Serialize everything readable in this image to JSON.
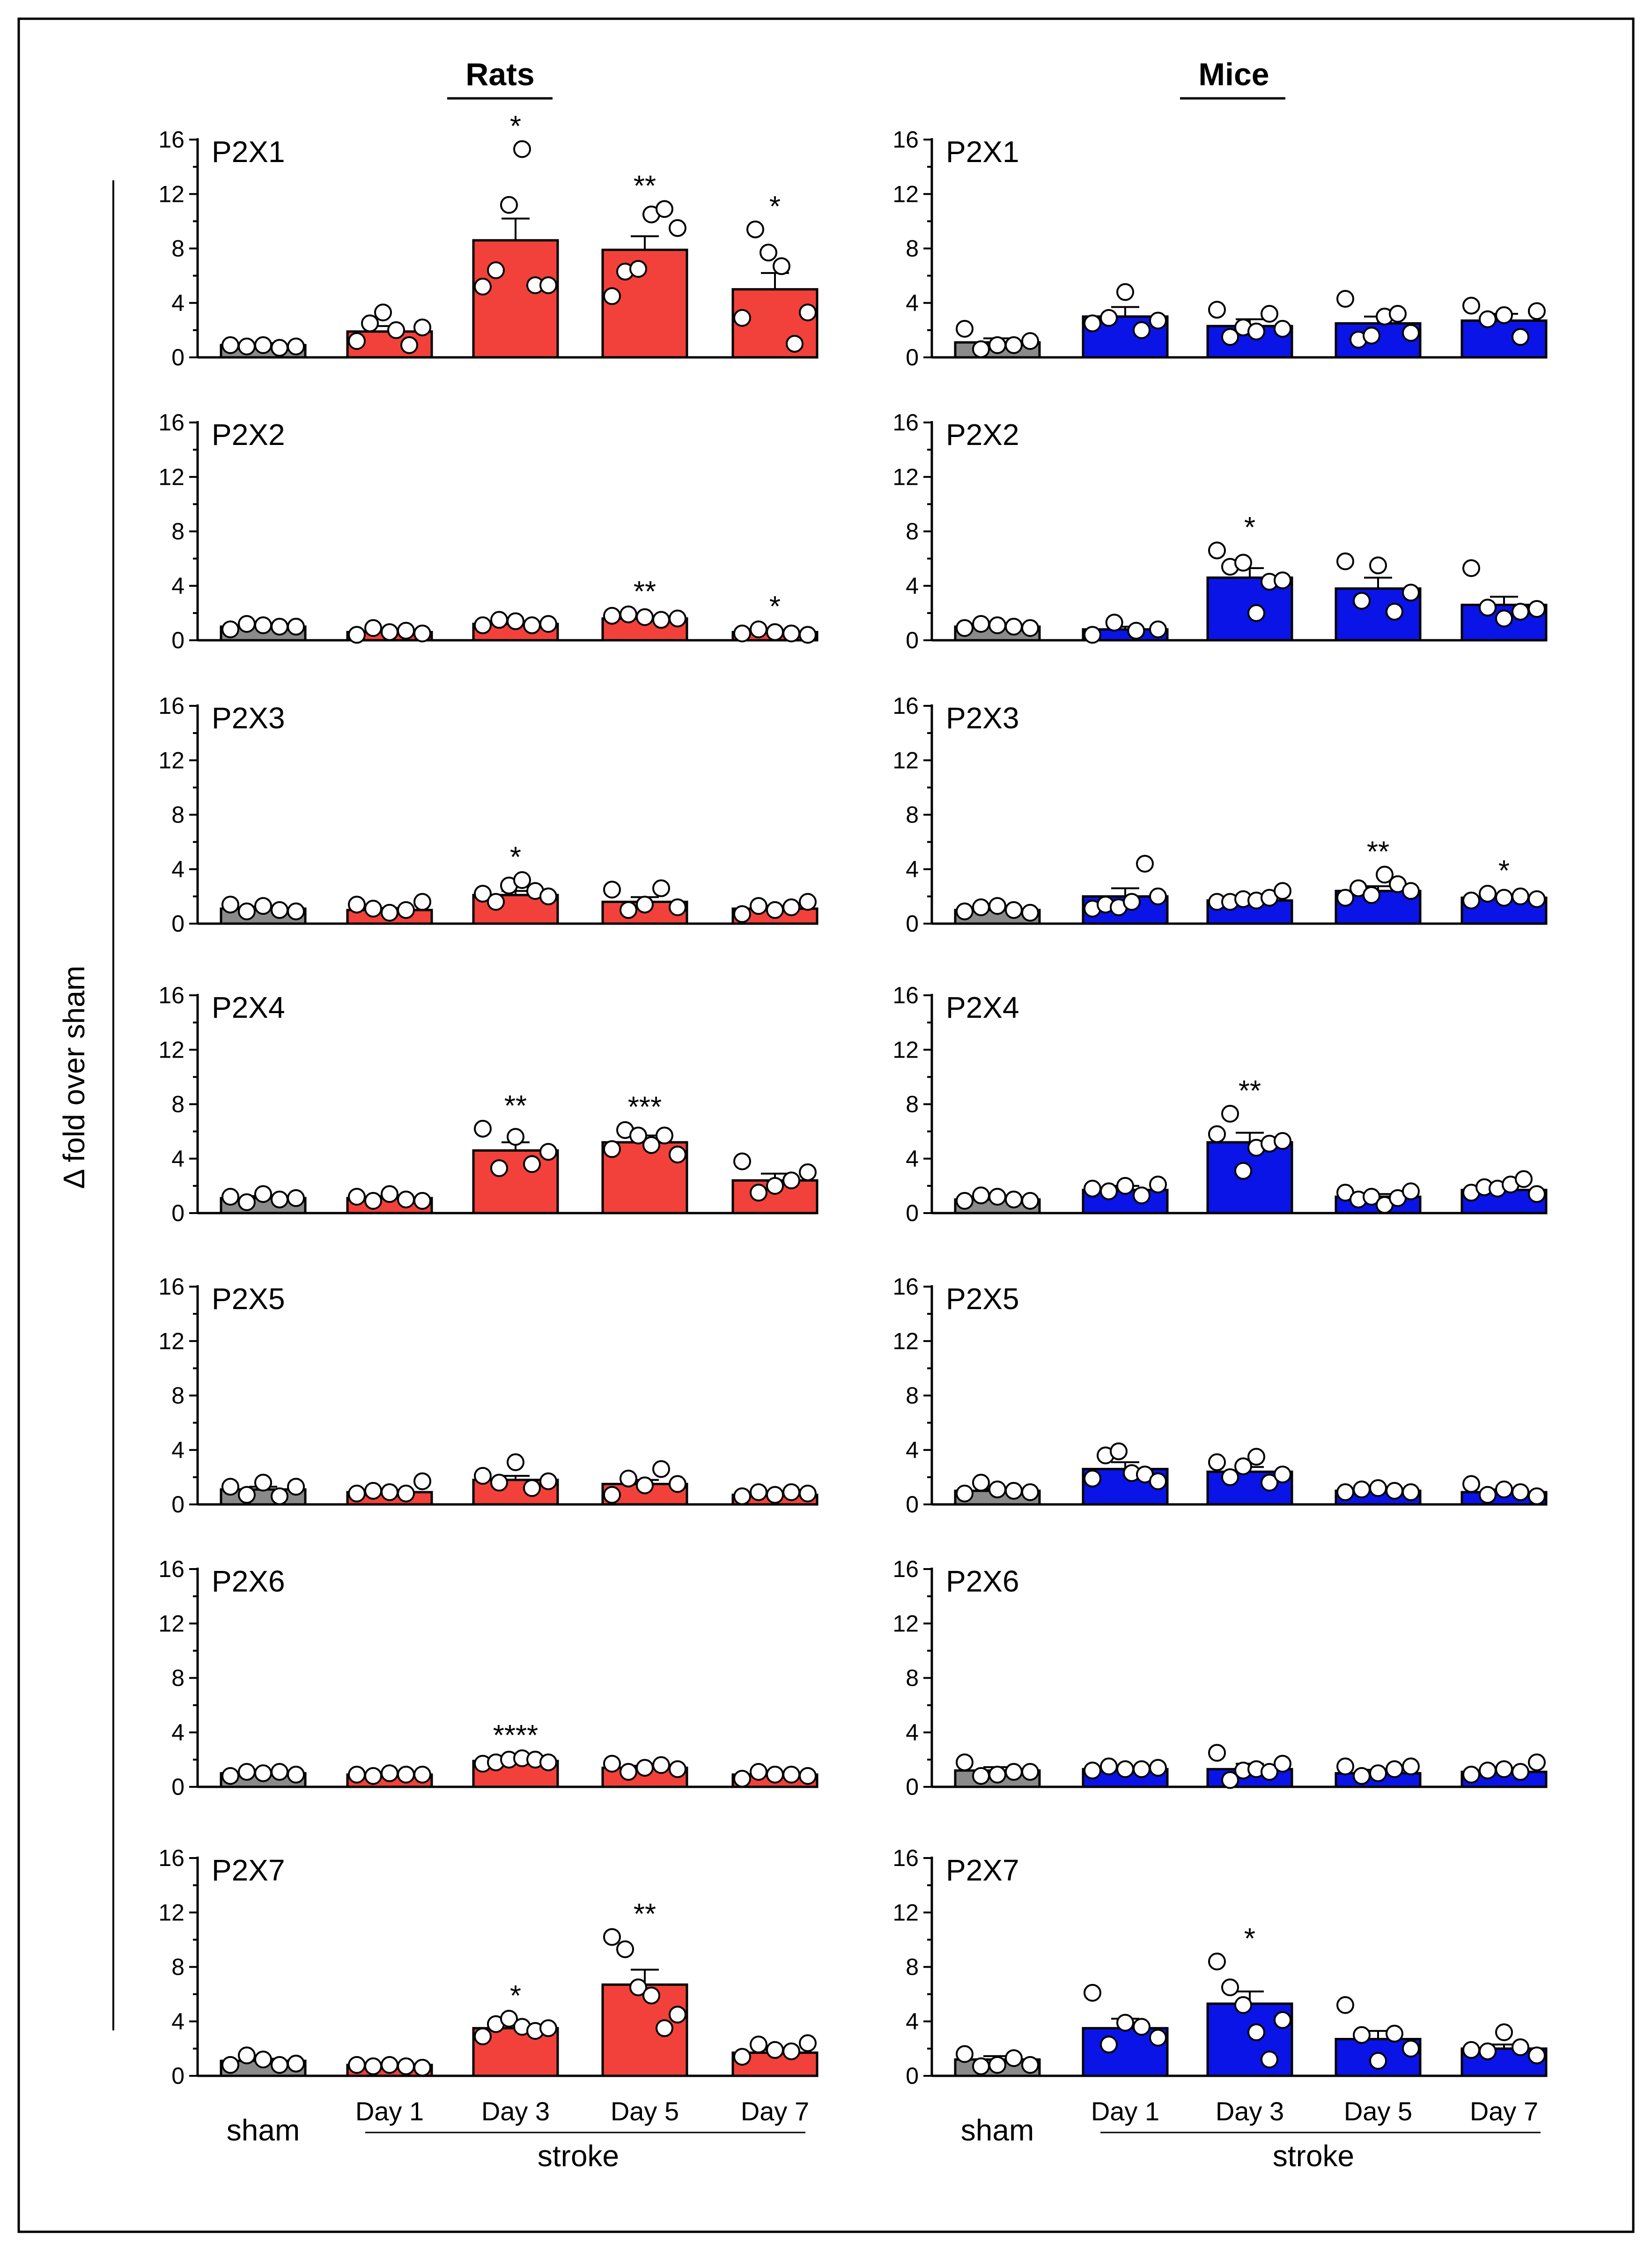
{
  "figure": {
    "y_axis_title": "Δ fold over sham",
    "columns": [
      {
        "title": "Rats",
        "color": "#f2413a"
      },
      {
        "title": "Mice",
        "color": "#0a14e6"
      }
    ],
    "sham_color": "#8a8a8a",
    "x_labels": {
      "sham": "sham",
      "days": [
        "Day 1",
        "Day 3",
        "Day 5",
        "Day 7"
      ],
      "group": "stroke"
    }
  },
  "chart_data": [
    {
      "type": "bar",
      "species": "Rats",
      "title": "P2X1",
      "categories": [
        "sham",
        "Day 1",
        "Day 3",
        "Day 5",
        "Day 7"
      ],
      "values": [
        0.9,
        1.9,
        8.6,
        7.9,
        5.0
      ],
      "errors": [
        0.15,
        0.4,
        1.6,
        1.0,
        1.2
      ],
      "points": [
        [
          0.9,
          0.8,
          0.9,
          0.7,
          0.8
        ],
        [
          1.2,
          2.5,
          3.3,
          2.0,
          0.9,
          2.2
        ],
        [
          5.2,
          6.4,
          11.2,
          15.3,
          5.3,
          5.3
        ],
        [
          4.5,
          6.3,
          6.5,
          10.5,
          10.9,
          9.5
        ],
        [
          2.9,
          9.4,
          7.7,
          6.7,
          1.0,
          3.3
        ]
      ],
      "stars": [
        "",
        "",
        "*",
        "**",
        "*"
      ],
      "ylim": [
        0,
        16
      ],
      "yticks": [
        0,
        4,
        8,
        12,
        16
      ]
    },
    {
      "type": "bar",
      "species": "Mice",
      "title": "P2X1",
      "categories": [
        "sham",
        "Day 1",
        "Day 3",
        "Day 5",
        "Day 7"
      ],
      "values": [
        1.1,
        3.0,
        2.3,
        2.5,
        2.7
      ],
      "errors": [
        0.3,
        0.7,
        0.5,
        0.5,
        0.5
      ],
      "points": [
        [
          2.1,
          0.6,
          0.9,
          0.9,
          1.2
        ],
        [
          2.5,
          2.9,
          4.8,
          2.0,
          2.7
        ],
        [
          3.5,
          1.5,
          2.2,
          1.9,
          3.2,
          2.1
        ],
        [
          4.3,
          1.3,
          1.6,
          3.0,
          3.2,
          1.8
        ],
        [
          3.8,
          2.8,
          3.1,
          1.5,
          3.4
        ]
      ],
      "stars": [
        "",
        "",
        "",
        "",
        ""
      ],
      "ylim": [
        0,
        16
      ],
      "yticks": [
        0,
        4,
        8,
        12,
        16
      ]
    },
    {
      "type": "bar",
      "species": "Rats",
      "title": "P2X2",
      "categories": [
        "sham",
        "Day 1",
        "Day 3",
        "Day 5",
        "Day 7"
      ],
      "values": [
        1.0,
        0.6,
        1.2,
        1.6,
        0.6
      ],
      "errors": [
        0.1,
        0.1,
        0.1,
        0.15,
        0.1
      ],
      "points": [
        [
          0.8,
          1.2,
          1.1,
          1.0,
          1.0
        ],
        [
          0.4,
          0.9,
          0.6,
          0.7,
          0.5
        ],
        [
          1.1,
          1.5,
          1.4,
          1.1,
          1.2
        ],
        [
          1.8,
          1.9,
          1.7,
          1.5,
          1.6
        ],
        [
          0.5,
          0.8,
          0.6,
          0.5,
          0.4
        ]
      ],
      "stars": [
        "",
        "",
        "",
        "**",
        "*"
      ],
      "ylim": [
        0,
        16
      ],
      "yticks": [
        0,
        4,
        8,
        12,
        16
      ]
    },
    {
      "type": "bar",
      "species": "Mice",
      "title": "P2X2",
      "categories": [
        "sham",
        "Day 1",
        "Day 3",
        "Day 5",
        "Day 7"
      ],
      "values": [
        1.0,
        0.8,
        4.6,
        3.8,
        2.6
      ],
      "errors": [
        0.1,
        0.2,
        0.7,
        0.8,
        0.6
      ],
      "points": [
        [
          0.9,
          1.2,
          1.1,
          1.0,
          0.9
        ],
        [
          0.4,
          1.3,
          0.7,
          0.8
        ],
        [
          6.6,
          5.4,
          5.7,
          2.0,
          4.3,
          4.4
        ],
        [
          5.8,
          2.9,
          5.5,
          2.1,
          3.5
        ],
        [
          5.3,
          2.4,
          1.6,
          2.1,
          2.3
        ]
      ],
      "stars": [
        "",
        "",
        "*",
        "",
        ""
      ],
      "ylim": [
        0,
        16
      ],
      "yticks": [
        0,
        4,
        8,
        12,
        16
      ]
    },
    {
      "type": "bar",
      "species": "Rats",
      "title": "P2X3",
      "categories": [
        "sham",
        "Day 1",
        "Day 3",
        "Day 5",
        "Day 7"
      ],
      "values": [
        1.1,
        1.0,
        2.1,
        1.6,
        1.1
      ],
      "errors": [
        0.15,
        0.15,
        0.3,
        0.35,
        0.2
      ],
      "points": [
        [
          1.4,
          0.9,
          1.3,
          1.0,
          0.9
        ],
        [
          1.4,
          1.1,
          0.8,
          1.0,
          1.6
        ],
        [
          2.2,
          1.6,
          2.8,
          3.2,
          2.4,
          2.0
        ],
        [
          2.5,
          1.0,
          1.4,
          2.6,
          1.2
        ],
        [
          0.7,
          1.3,
          1.0,
          1.2,
          1.6
        ]
      ],
      "stars": [
        "",
        "",
        "*",
        "",
        ""
      ],
      "ylim": [
        0,
        16
      ],
      "yticks": [
        0,
        4,
        8,
        12,
        16
      ]
    },
    {
      "type": "bar",
      "species": "Mice",
      "title": "P2X3",
      "categories": [
        "sham",
        "Day 1",
        "Day 3",
        "Day 5",
        "Day 7"
      ],
      "values": [
        1.0,
        2.0,
        1.7,
        2.4,
        1.9
      ],
      "errors": [
        0.1,
        0.6,
        0.2,
        0.35,
        0.2
      ],
      "points": [
        [
          0.9,
          1.2,
          1.3,
          1.0,
          0.8
        ],
        [
          1.1,
          1.4,
          1.2,
          1.6,
          4.4,
          2.0
        ],
        [
          1.6,
          1.6,
          1.8,
          1.7,
          1.9,
          2.4
        ],
        [
          1.9,
          2.6,
          2.1,
          3.6,
          2.9,
          2.4
        ],
        [
          1.7,
          2.2,
          1.9,
          2.0,
          1.8
        ]
      ],
      "stars": [
        "",
        "",
        "",
        "**",
        "*"
      ],
      "ylim": [
        0,
        16
      ],
      "yticks": [
        0,
        4,
        8,
        12,
        16
      ]
    },
    {
      "type": "bar",
      "species": "Rats",
      "title": "P2X4",
      "categories": [
        "sham",
        "Day 1",
        "Day 3",
        "Day 5",
        "Day 7"
      ],
      "values": [
        1.1,
        1.1,
        4.6,
        5.2,
        2.4
      ],
      "errors": [
        0.15,
        0.15,
        0.6,
        0.5,
        0.5
      ],
      "points": [
        [
          1.2,
          0.8,
          1.4,
          1.0,
          1.1
        ],
        [
          1.2,
          0.9,
          1.4,
          1.0,
          0.9
        ],
        [
          6.2,
          3.3,
          5.6,
          3.6,
          4.5
        ],
        [
          4.7,
          6.1,
          5.7,
          5.0,
          5.7,
          4.3
        ],
        [
          3.8,
          1.5,
          2.0,
          2.4,
          3.0
        ]
      ],
      "stars": [
        "",
        "",
        "**",
        "***",
        ""
      ],
      "ylim": [
        0,
        16
      ],
      "yticks": [
        0,
        4,
        8,
        12,
        16
      ]
    },
    {
      "type": "bar",
      "species": "Mice",
      "title": "P2X4",
      "categories": [
        "sham",
        "Day 1",
        "Day 3",
        "Day 5",
        "Day 7"
      ],
      "values": [
        1.0,
        1.7,
        5.2,
        1.2,
        1.7
      ],
      "errors": [
        0.1,
        0.3,
        0.7,
        0.2,
        0.25
      ],
      "points": [
        [
          0.9,
          1.3,
          1.2,
          1.0,
          0.9
        ],
        [
          1.8,
          1.6,
          2.0,
          1.3,
          2.1
        ],
        [
          5.8,
          7.3,
          3.1,
          4.8,
          5.1,
          5.3
        ],
        [
          1.5,
          1.0,
          1.2,
          0.6,
          1.1,
          1.6
        ],
        [
          1.5,
          1.9,
          1.8,
          2.1,
          2.5,
          1.4
        ]
      ],
      "stars": [
        "",
        "",
        "**",
        "",
        ""
      ],
      "ylim": [
        0,
        16
      ],
      "yticks": [
        0,
        4,
        8,
        12,
        16
      ]
    },
    {
      "type": "bar",
      "species": "Rats",
      "title": "P2X5",
      "categories": [
        "sham",
        "Day 1",
        "Day 3",
        "Day 5",
        "Day 7"
      ],
      "values": [
        1.1,
        0.9,
        1.8,
        1.5,
        0.7
      ],
      "errors": [
        0.2,
        0.15,
        0.3,
        0.3,
        0.1
      ],
      "points": [
        [
          1.3,
          0.7,
          1.6,
          0.6,
          1.3
        ],
        [
          0.8,
          1.0,
          0.9,
          0.8,
          1.7
        ],
        [
          2.1,
          1.6,
          3.1,
          1.2,
          1.7
        ],
        [
          0.7,
          1.9,
          1.4,
          2.6,
          1.5
        ],
        [
          0.6,
          0.9,
          0.7,
          0.9,
          0.8
        ]
      ],
      "stars": [
        "",
        "",
        "",
        "",
        ""
      ],
      "ylim": [
        0,
        16
      ],
      "yticks": [
        0,
        4,
        8,
        12,
        16
      ]
    },
    {
      "type": "bar",
      "species": "Mice",
      "title": "P2X5",
      "categories": [
        "sham",
        "Day 1",
        "Day 3",
        "Day 5",
        "Day 7"
      ],
      "values": [
        1.0,
        2.6,
        2.4,
        1.0,
        0.9
      ],
      "errors": [
        0.15,
        0.5,
        0.35,
        0.15,
        0.2
      ],
      "points": [
        [
          0.8,
          1.6,
          1.1,
          1.0,
          0.9
        ],
        [
          1.9,
          3.6,
          3.9,
          2.3,
          2.2,
          1.7
        ],
        [
          3.1,
          2.0,
          2.8,
          3.5,
          1.6,
          2.2
        ],
        [
          0.9,
          1.1,
          1.2,
          1.0,
          0.9
        ],
        [
          1.5,
          0.7,
          1.1,
          0.9,
          0.6
        ]
      ],
      "stars": [
        "",
        "",
        "",
        "",
        ""
      ],
      "ylim": [
        0,
        16
      ],
      "yticks": [
        0,
        4,
        8,
        12,
        16
      ]
    },
    {
      "type": "bar",
      "species": "Rats",
      "title": "P2X6",
      "categories": [
        "sham",
        "Day 1",
        "Day 3",
        "Day 5",
        "Day 7"
      ],
      "values": [
        1.0,
        0.9,
        1.9,
        1.4,
        0.9
      ],
      "errors": [
        0.1,
        0.1,
        0.1,
        0.15,
        0.1
      ],
      "points": [
        [
          0.8,
          1.1,
          1.0,
          1.1,
          0.9
        ],
        [
          0.9,
          0.8,
          1.0,
          0.9,
          0.9
        ],
        [
          1.7,
          1.8,
          2.0,
          2.1,
          2.0,
          1.8
        ],
        [
          1.7,
          1.1,
          1.4,
          1.6,
          1.3
        ],
        [
          0.6,
          1.1,
          0.9,
          0.9,
          0.8
        ]
      ],
      "stars": [
        "",
        "",
        "****",
        "",
        ""
      ],
      "ylim": [
        0,
        16
      ],
      "yticks": [
        0,
        4,
        8,
        12,
        16
      ]
    },
    {
      "type": "bar",
      "species": "Mice",
      "title": "P2X6",
      "categories": [
        "sham",
        "Day 1",
        "Day 3",
        "Day 5",
        "Day 7"
      ],
      "values": [
        1.2,
        1.3,
        1.3,
        1.0,
        1.1
      ],
      "errors": [
        0.25,
        0.15,
        0.4,
        0.25,
        0.15
      ],
      "points": [
        [
          1.8,
          0.8,
          0.9,
          1.1,
          1.1
        ],
        [
          1.2,
          1.5,
          1.3,
          1.3,
          1.4
        ],
        [
          2.5,
          0.5,
          1.2,
          1.3,
          1.1,
          1.7
        ],
        [
          1.5,
          0.8,
          1.0,
          1.3,
          1.5
        ],
        [
          0.9,
          1.2,
          1.3,
          1.1,
          1.8
        ]
      ],
      "stars": [
        "",
        "",
        "",
        "",
        ""
      ],
      "ylim": [
        0,
        16
      ],
      "yticks": [
        0,
        4,
        8,
        12,
        16
      ]
    },
    {
      "type": "bar",
      "species": "Rats",
      "title": "P2X7",
      "categories": [
        "sham",
        "Day 1",
        "Day 3",
        "Day 5",
        "Day 7"
      ],
      "values": [
        1.1,
        0.8,
        3.5,
        6.7,
        1.7
      ],
      "errors": [
        0.15,
        0.1,
        0.25,
        1.1,
        0.2
      ],
      "points": [
        [
          0.8,
          1.5,
          1.2,
          0.8,
          0.9
        ],
        [
          0.8,
          0.7,
          0.8,
          0.7,
          0.6
        ],
        [
          2.9,
          3.8,
          4.2,
          3.6,
          3.3,
          3.5
        ],
        [
          10.2,
          9.3,
          6.5,
          5.9,
          3.5,
          4.5
        ],
        [
          1.4,
          2.3,
          1.9,
          1.8,
          2.4
        ]
      ],
      "stars": [
        "",
        "",
        "*",
        "**",
        ""
      ],
      "ylim": [
        0,
        16
      ],
      "yticks": [
        0,
        4,
        8,
        12,
        16
      ]
    },
    {
      "type": "bar",
      "species": "Mice",
      "title": "P2X7",
      "categories": [
        "sham",
        "Day 1",
        "Day 3",
        "Day 5",
        "Day 7"
      ],
      "values": [
        1.2,
        3.5,
        5.3,
        2.7,
        2.0
      ],
      "errors": [
        0.25,
        0.7,
        0.9,
        0.6,
        0.3
      ],
      "points": [
        [
          1.6,
          0.7,
          0.8,
          1.3,
          0.8
        ],
        [
          6.1,
          2.3,
          3.9,
          3.6,
          2.8
        ],
        [
          8.4,
          6.5,
          5.2,
          3.2,
          1.2,
          4.1
        ],
        [
          5.2,
          3.0,
          1.1,
          3.1,
          2.0
        ],
        [
          1.9,
          1.8,
          3.2,
          2.1,
          1.5
        ]
      ],
      "stars": [
        "",
        "",
        "*",
        "",
        ""
      ],
      "ylim": [
        0,
        16
      ],
      "yticks": [
        0,
        4,
        8,
        12,
        16
      ]
    }
  ]
}
